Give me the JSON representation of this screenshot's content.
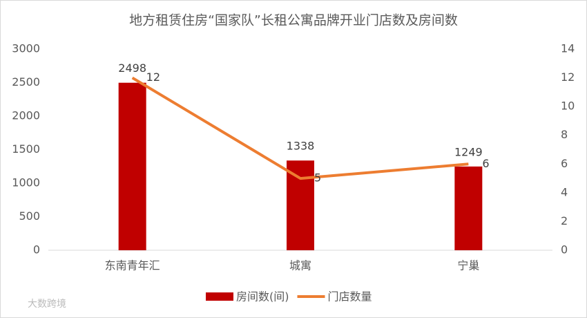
{
  "chart_data": {
    "type": "bar-line",
    "title": "地方租赁住房“国家队”长租公寓品牌开业门店数及房间数",
    "categories": [
      "东南青年汇",
      "城寓",
      "宁巢"
    ],
    "series": [
      {
        "name": "房间数(间)",
        "color": "#c00000",
        "type": "bar",
        "values": [
          2498,
          1338,
          1249
        ]
      },
      {
        "name": "门店数量",
        "color": "#ed7d31",
        "type": "line",
        "axis": "y2",
        "values": [
          12,
          5,
          6
        ]
      }
    ],
    "ylim": [
      0,
      3000
    ],
    "yticks": [
      0,
      500,
      1000,
      1500,
      2000,
      2500,
      3000
    ],
    "y2lim": [
      0,
      14
    ],
    "y2ticks": [
      0,
      2,
      4,
      6,
      8,
      10,
      12,
      14
    ],
    "legend": "bottom",
    "watermark": "大数跨境"
  }
}
